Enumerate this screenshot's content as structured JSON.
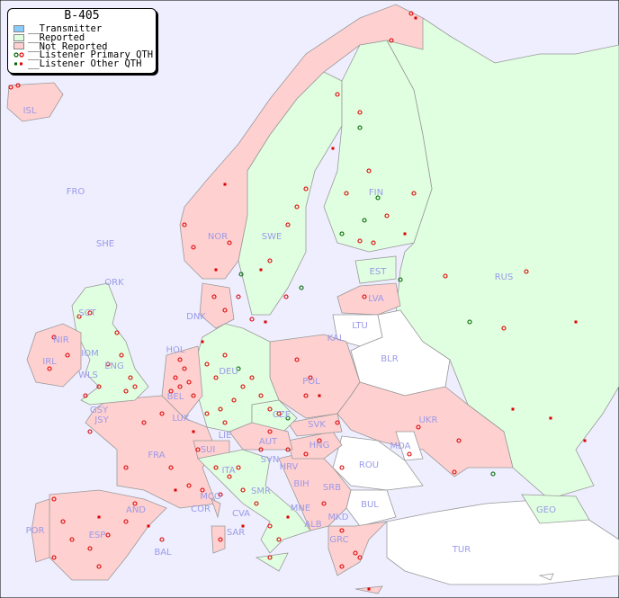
{
  "legend": {
    "title": "B-405",
    "items": [
      {
        "label": "__Transmitter",
        "color": "#88ccff"
      },
      {
        "label": "__Reported",
        "color": "#e0ffe0"
      },
      {
        "label": "__Not Reported",
        "color": "#ffd0d0"
      },
      {
        "label": "__Listener Primary QTH",
        "colors": [
          "#006600",
          "#dd0000"
        ]
      },
      {
        "label": "__Listener Other QTH",
        "colors": [
          "#006600",
          "#dd0000"
        ]
      }
    ]
  },
  "colors": {
    "sea": "#eeeeff",
    "reported": "#e0ffe0",
    "not_reported": "#ffd0d0",
    "no_data": "#ffffff",
    "border": "#999999",
    "label": "#9a9ae8"
  },
  "countries": {
    "ISL": "ISL",
    "FRO": "FRO",
    "SHE": "SHE",
    "ORK": "ORK",
    "NOR": "NOR",
    "SWE": "SWE",
    "FIN": "FIN",
    "EST": "EST",
    "RUS": "RUS",
    "LVA": "LVA",
    "LTU": "LTU",
    "DNK": "DNK",
    "KAL": "KAL",
    "BLR": "BLR",
    "SCT": "SCT",
    "NIR": "NIR",
    "IOM": "IOM",
    "IRL": "IRL",
    "ENG": "ENG",
    "WLS": "WLS",
    "HOL": "HOL",
    "DEU": "DEU",
    "POL": "POL",
    "BEL": "BEL",
    "GSY": "GSY",
    "JSY": "JSY",
    "LUX": "LUX",
    "CZE": "CZE",
    "SVK": "SVK",
    "UKR": "UKR",
    "FRA": "FRA",
    "SUI": "SUI",
    "LIE": "LIE",
    "AUT": "AUT",
    "HNG": "HNG",
    "MDA": "MDA",
    "SVN": "SVN",
    "HRV": "HRV",
    "ROU": "ROU",
    "ITA": "ITA",
    "BIH": "BIH",
    "SRB": "SRB",
    "SMR": "SMR",
    "MCO": "MCO",
    "COR": "COR",
    "AND": "AND",
    "MNE": "MNE",
    "BUL": "BUL",
    "GEO": "GEO",
    "CVA": "CVA",
    "ALB": "ALB",
    "MKD": "MKD",
    "POR": "POR",
    "ESP": "ESP",
    "SAR": "SAR",
    "BAL": "BAL",
    "GRC": "GRC",
    "TUR": "TUR"
  }
}
